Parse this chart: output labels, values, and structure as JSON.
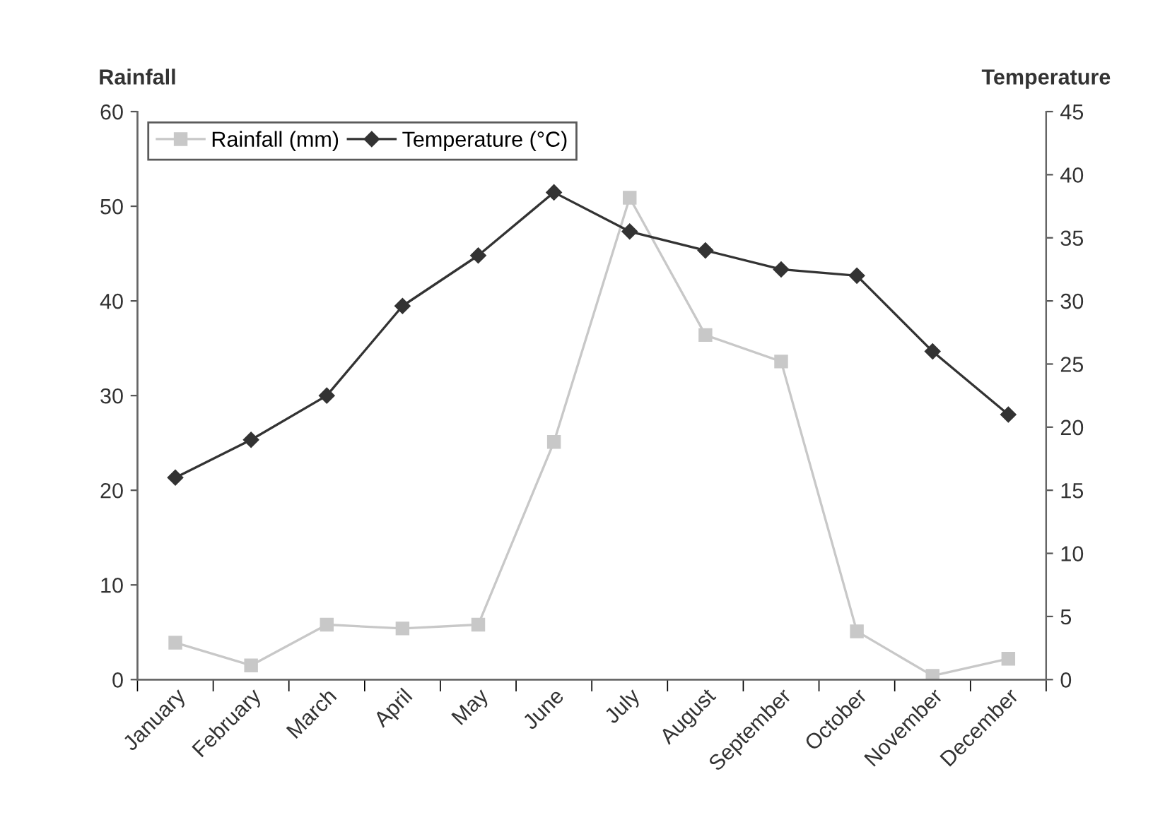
{
  "chart_data": {
    "type": "line",
    "ylabel": "Rainfall",
    "y2label": "Temperature",
    "categories": [
      "January",
      "February",
      "March",
      "April",
      "May",
      "June",
      "July",
      "August",
      "September",
      "October",
      "November",
      "December"
    ],
    "series": [
      {
        "name": "Rainfall (mm)",
        "color": "#c8c8c8",
        "marker": "square",
        "values": [
          3.9,
          1.5,
          5.8,
          5.4,
          5.8,
          25.1,
          50.9,
          36.4,
          33.6,
          5.1,
          0.4,
          2.2
        ]
      },
      {
        "name": "Temperature (°C)",
        "color": "#333333",
        "marker": "diamond",
        "axis": "y2",
        "values": [
          16.0,
          19.0,
          22.5,
          29.6,
          33.6,
          38.6,
          35.5,
          34.0,
          32.5,
          32.0,
          26.0,
          21.0
        ]
      }
    ],
    "ylim": [
      0,
      60
    ],
    "yticks": [
      0,
      10,
      20,
      30,
      40,
      50,
      60
    ],
    "y2lim": [
      0,
      45
    ],
    "y2ticks": [
      0,
      5,
      10,
      15,
      20,
      25,
      30,
      35,
      40,
      45
    ],
    "grid": false,
    "legend": "top left"
  }
}
